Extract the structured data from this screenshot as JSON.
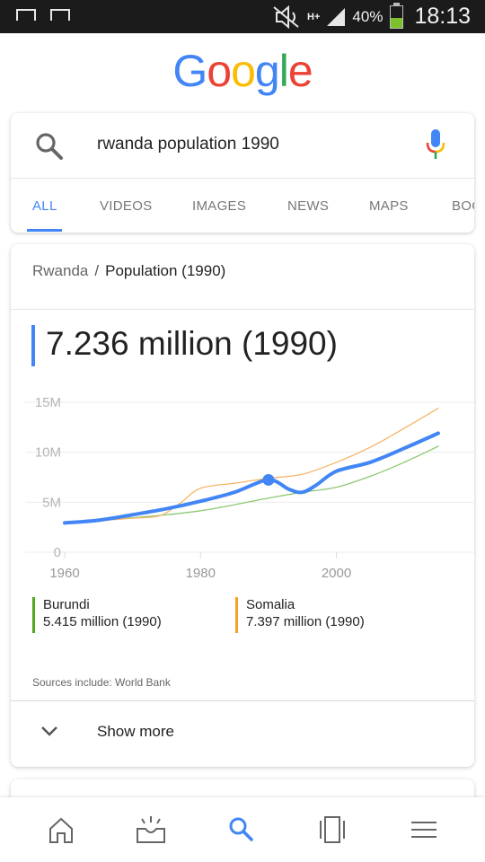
{
  "status_bar": {
    "battery_pct": "40%",
    "time": "18:13",
    "network": "H+"
  },
  "logo": {
    "letters": [
      "G",
      "o",
      "o",
      "g",
      "l",
      "e"
    ],
    "colors": [
      "#4285f4",
      "#ea4335",
      "#fbbc05",
      "#4285f4",
      "#34a853",
      "#ea4335"
    ]
  },
  "search": {
    "query": "rwanda population 1990"
  },
  "tabs": [
    {
      "label": "ALL",
      "active": true
    },
    {
      "label": "VIDEOS"
    },
    {
      "label": "IMAGES"
    },
    {
      "label": "NEWS"
    },
    {
      "label": "MAPS"
    },
    {
      "label": "BOO"
    }
  ],
  "result": {
    "breadcrumb_parent": "Rwanda",
    "breadcrumb_sep": "/",
    "breadcrumb_current": "Population (1990)",
    "value": "7.236 million (1990)",
    "sources": "Sources include: World Bank",
    "show_more": "Show more"
  },
  "legend": [
    {
      "name": "Burundi",
      "value": "5.415 million (1990)",
      "color": "#51a61d"
    },
    {
      "name": "Somalia",
      "value": "7.397 million (1990)",
      "color": "#f8a02a"
    }
  ],
  "chart_data": {
    "type": "line",
    "y_ticks": [
      "15M",
      "10M",
      "5M",
      "0"
    ],
    "x_ticks": [
      "1960",
      "1980",
      "2000"
    ],
    "xlim": [
      1960,
      2015
    ],
    "ylim": [
      0,
      15
    ],
    "highlight": {
      "x": 1990,
      "y": 7.236
    },
    "series": [
      {
        "name": "Rwanda",
        "color": "#4285f4",
        "x": [
          1960,
          1965,
          1970,
          1975,
          1980,
          1985,
          1990,
          1993,
          1995,
          1997,
          2000,
          2005,
          2010,
          2015
        ],
        "y": [
          2.93,
          3.2,
          3.75,
          4.35,
          5.1,
          6.0,
          7.236,
          6.3,
          6.0,
          6.7,
          8.1,
          9.0,
          10.4,
          11.9
        ]
      },
      {
        "name": "Burundi",
        "color": "#8cc972",
        "x": [
          1960,
          1965,
          1970,
          1975,
          1980,
          1985,
          1990,
          1995,
          2000,
          2005,
          2010,
          2015
        ],
        "y": [
          2.95,
          3.2,
          3.45,
          3.75,
          4.15,
          4.75,
          5.415,
          6.0,
          6.5,
          7.6,
          9.0,
          10.6
        ]
      },
      {
        "name": "Somalia",
        "color": "#f6b56a",
        "x": [
          1960,
          1965,
          1970,
          1974,
          1977,
          1980,
          1985,
          1990,
          1995,
          2000,
          2005,
          2010,
          2015
        ],
        "y": [
          2.9,
          3.15,
          3.4,
          3.65,
          4.9,
          6.4,
          6.9,
          7.397,
          7.8,
          9.0,
          10.5,
          12.4,
          14.4
        ]
      }
    ]
  },
  "bottom_nav": [
    "home-icon",
    "updates-icon",
    "search-icon",
    "recent-tabs-icon",
    "menu-icon"
  ]
}
